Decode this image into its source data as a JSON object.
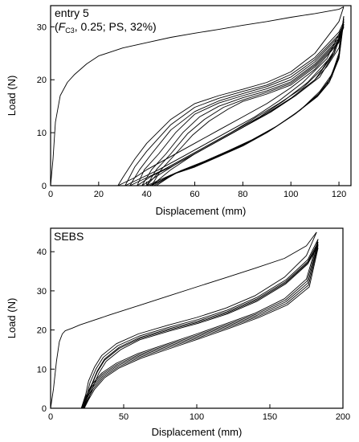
{
  "chart_data": [
    {
      "type": "line",
      "annotation": {
        "line1": "entry 5",
        "line2_open": "(",
        "line2_F": "F",
        "line2_sub": "C3",
        "line2_rest": ", 0.25; PS, 32%)"
      },
      "xlabel": "Displacement (mm)",
      "ylabel": "Load (N)",
      "xlim": [
        0,
        125
      ],
      "ylim": [
        0,
        34
      ],
      "xticks": [
        0,
        20,
        40,
        60,
        80,
        100,
        120
      ],
      "yticks": [
        0,
        10,
        20,
        30
      ],
      "grid": false,
      "line_color": "#000000",
      "series": [
        {
          "x": [
            0,
            1,
            2,
            4,
            7,
            10,
            15,
            20,
            30,
            40,
            50,
            60,
            70,
            80,
            90,
            100,
            110,
            120,
            122
          ],
          "y": [
            0,
            5,
            12,
            17,
            19.5,
            21,
            23,
            24.5,
            26,
            27,
            28,
            28.8,
            29.5,
            30.3,
            31,
            31.8,
            32.5,
            33.3,
            33.8
          ]
        },
        {
          "x": [
            122,
            120,
            110,
            100,
            90,
            80,
            70,
            60,
            50,
            40,
            35,
            30,
            28
          ],
          "y": [
            33.8,
            31,
            25,
            21.5,
            19.5,
            18.2,
            17,
            15.5,
            12.5,
            8,
            5,
            1.5,
            0
          ]
        },
        {
          "x": [
            28,
            35,
            40,
            50,
            60,
            70,
            80,
            90,
            100,
            110,
            120,
            122
          ],
          "y": [
            0,
            1.5,
            3,
            5.5,
            8,
            10.5,
            13,
            15.5,
            18.5,
            22,
            27,
            31
          ]
        },
        {
          "x": [
            122,
            120,
            110,
            100,
            90,
            80,
            70,
            60,
            50,
            40,
            35,
            31
          ],
          "y": [
            31,
            29,
            24.2,
            21,
            19,
            17.8,
            16.5,
            14.8,
            11.5,
            6.5,
            3.5,
            0
          ]
        },
        {
          "x": [
            31,
            38,
            45,
            55,
            65,
            75,
            85,
            95,
            105,
            115,
            122
          ],
          "y": [
            0,
            1.5,
            3,
            5.5,
            8,
            10.5,
            13,
            16,
            19.5,
            24,
            30.5
          ]
        },
        {
          "x": [
            122,
            120,
            110,
            100,
            90,
            80,
            70,
            60,
            50,
            42,
            37,
            33
          ],
          "y": [
            30.5,
            28.5,
            23.8,
            20.5,
            18.7,
            17.4,
            16,
            14,
            10.5,
            6,
            3,
            0
          ]
        },
        {
          "x": [
            33,
            40,
            47,
            57,
            67,
            77,
            87,
            97,
            107,
            117,
            122
          ],
          "y": [
            0,
            1.5,
            3,
            5.5,
            8,
            10.5,
            13,
            16,
            19.5,
            24.5,
            30.3
          ]
        },
        {
          "x": [
            122,
            120,
            110,
            100,
            90,
            80,
            70,
            60,
            52,
            45,
            39,
            36
          ],
          "y": [
            30.3,
            28.2,
            23.4,
            20,
            18.3,
            17,
            15.6,
            13.5,
            10,
            6,
            3,
            0
          ]
        },
        {
          "x": [
            36,
            42,
            50,
            60,
            70,
            80,
            90,
            100,
            110,
            118,
            122
          ],
          "y": [
            0,
            1.8,
            3.5,
            6,
            8.5,
            11,
            13.7,
            16.5,
            20,
            25,
            30
          ]
        },
        {
          "x": [
            122,
            120,
            110,
            100,
            90,
            80,
            70,
            62,
            55,
            48,
            42,
            38
          ],
          "y": [
            30,
            27.8,
            23,
            19.6,
            17.9,
            16.6,
            15,
            13,
            10,
            6,
            3,
            0
          ]
        },
        {
          "x": [
            38,
            45,
            52,
            62,
            72,
            82,
            92,
            102,
            112,
            118,
            122
          ],
          "y": [
            0,
            2,
            4,
            6.5,
            9,
            11.5,
            14,
            17,
            20.5,
            25,
            30
          ]
        },
        {
          "x": [
            122,
            120,
            110,
            100,
            90,
            80,
            72,
            64,
            57,
            50,
            44,
            40
          ],
          "y": [
            30,
            27.5,
            22.7,
            19.3,
            17.6,
            16.2,
            14.8,
            12.5,
            9.8,
            6,
            3,
            0
          ]
        },
        {
          "x": [
            40,
            45,
            55,
            65,
            75,
            85,
            95,
            105,
            113,
            118,
            122
          ],
          "y": [
            0,
            2.5,
            5,
            7.5,
            10,
            12.8,
            15.5,
            18.5,
            22,
            25.5,
            30.5
          ]
        },
        {
          "x": [
            122,
            120,
            110,
            100,
            90,
            80,
            74,
            66,
            59,
            52,
            46,
            42
          ],
          "y": [
            30.5,
            27.2,
            22.4,
            19,
            17.3,
            15.9,
            14.5,
            12.2,
            9.5,
            6,
            3,
            0
          ]
        },
        {
          "x": [
            42,
            50,
            60,
            70,
            80,
            90,
            100,
            110,
            115,
            120,
            122
          ],
          "y": [
            0,
            3,
            6,
            8.5,
            11,
            13.5,
            16.5,
            20,
            22.5,
            26,
            31
          ]
        },
        {
          "x": [
            40,
            45,
            50,
            60,
            70,
            80,
            90,
            100,
            110,
            115,
            120,
            122
          ],
          "y": [
            0,
            1,
            2,
            3.5,
            5.5,
            7.5,
            10,
            13,
            16.5,
            19,
            24,
            31
          ]
        },
        {
          "x": [
            41,
            46,
            51,
            61,
            71,
            81,
            91,
            101,
            111,
            116,
            120,
            122
          ],
          "y": [
            0,
            1,
            2.2,
            3.8,
            5.8,
            7.8,
            10.3,
            13.3,
            16.8,
            19.5,
            24,
            31.5
          ]
        },
        {
          "x": [
            42,
            47,
            52,
            62,
            72,
            82,
            92,
            102,
            111,
            116,
            120,
            122
          ],
          "y": [
            0,
            1.2,
            2.4,
            4,
            6,
            8.1,
            10.6,
            13.6,
            17,
            20,
            24.5,
            32
          ]
        },
        {
          "x": [
            43,
            48,
            53,
            63,
            73,
            83,
            93,
            103,
            112,
            117,
            120,
            122
          ],
          "y": [
            0,
            1.3,
            2.6,
            4.3,
            6.3,
            8.4,
            10.9,
            14,
            17.5,
            20.5,
            24.5,
            31.5
          ]
        },
        {
          "x": [
            44,
            49,
            54,
            64,
            74,
            84,
            94,
            104,
            112,
            117,
            120,
            122
          ],
          "y": [
            0,
            1.5,
            2.8,
            4.6,
            6.6,
            8.7,
            11.2,
            14.3,
            17.8,
            21,
            25,
            32
          ]
        }
      ]
    },
    {
      "type": "line",
      "annotation": {
        "line1": "SEBS"
      },
      "xlabel": "Displacement (mm)",
      "ylabel": "Load (N)",
      "xlim": [
        0,
        200
      ],
      "ylim": [
        0,
        46
      ],
      "xticks": [
        0,
        50,
        100,
        150,
        200
      ],
      "yticks": [
        0,
        10,
        20,
        30,
        40
      ],
      "grid": false,
      "line_color": "#000000",
      "series": [
        {
          "x": [
            0,
            2,
            4,
            6,
            8,
            10,
            15,
            20,
            40,
            60,
            80,
            100,
            120,
            140,
            160,
            175,
            182
          ],
          "y": [
            0,
            5,
            12,
            17,
            19,
            19.8,
            20.5,
            21.3,
            23.8,
            26.2,
            28.6,
            31,
            33.4,
            35.8,
            38.3,
            41.5,
            45
          ]
        },
        {
          "x": [
            182,
            175,
            160,
            140,
            120,
            100,
            80,
            60,
            45,
            35,
            30,
            26,
            24,
            21
          ],
          "y": [
            45,
            39,
            33.5,
            28.8,
            25.6,
            23.2,
            21.2,
            19,
            16.5,
            13.5,
            10.5,
            7,
            3.5,
            0
          ]
        },
        {
          "x": [
            183,
            176,
            161,
            141,
            121,
            101,
            81,
            61,
            46,
            36,
            31,
            27,
            24.5,
            21.5
          ],
          "y": [
            43.2,
            38,
            32.8,
            28.3,
            25.1,
            22.7,
            20.7,
            18.5,
            16,
            13,
            10,
            6.5,
            3,
            0
          ]
        },
        {
          "x": [
            183,
            176,
            161,
            141,
            121,
            101,
            81,
            61,
            47,
            37,
            32,
            28,
            25,
            22
          ],
          "y": [
            42.5,
            37.5,
            32.4,
            27.9,
            24.7,
            22.3,
            20.3,
            18.1,
            15.6,
            12.6,
            9.6,
            6,
            2.8,
            0
          ]
        },
        {
          "x": [
            183,
            176,
            161,
            141,
            121,
            101,
            81,
            61,
            47,
            37,
            32,
            28,
            25,
            22.5
          ],
          "y": [
            42,
            37.2,
            32.1,
            27.6,
            24.4,
            22,
            20,
            17.8,
            15.3,
            12.3,
            9.3,
            5.8,
            2.6,
            0
          ]
        },
        {
          "x": [
            183,
            176,
            161,
            141,
            121,
            101,
            81,
            61,
            48,
            38,
            33,
            29,
            26,
            23
          ],
          "y": [
            41.6,
            36.9,
            31.8,
            27.3,
            24.1,
            21.7,
            19.7,
            17.5,
            15,
            12,
            9,
            5.5,
            2.4,
            0
          ]
        },
        {
          "x": [
            21,
            24,
            28,
            35,
            45,
            60,
            80,
            100,
            120,
            140,
            160,
            175,
            183
          ],
          "y": [
            0,
            3,
            6,
            9,
            11.5,
            14,
            16.5,
            19,
            21.6,
            24.3,
            28,
            33,
            43.2
          ]
        },
        {
          "x": [
            21.5,
            24.5,
            28.5,
            35.5,
            45.5,
            60.5,
            80.5,
            100.5,
            120.5,
            140.5,
            160.5,
            175.5,
            183
          ],
          "y": [
            0,
            2.8,
            5.7,
            8.7,
            11.2,
            13.7,
            16.2,
            18.7,
            21.3,
            24,
            27.6,
            32.5,
            42.5
          ]
        },
        {
          "x": [
            22,
            25,
            29,
            36,
            46,
            61,
            81,
            101,
            121,
            141,
            161,
            176,
            183
          ],
          "y": [
            0,
            2.6,
            5.4,
            8.4,
            10.9,
            13.4,
            15.9,
            18.4,
            21,
            23.7,
            27.2,
            32,
            42
          ]
        },
        {
          "x": [
            22.5,
            25.5,
            29.5,
            36.5,
            46.5,
            61.5,
            81.5,
            101.5,
            121.5,
            141.5,
            161.5,
            176.5,
            183
          ],
          "y": [
            0,
            2.4,
            5.1,
            8.1,
            10.6,
            13.1,
            15.6,
            18.1,
            20.7,
            23.4,
            26.8,
            31.5,
            41.6
          ]
        },
        {
          "x": [
            23,
            26,
            30,
            37,
            47,
            62,
            82,
            102,
            122,
            142,
            162,
            177,
            183
          ],
          "y": [
            0,
            2.2,
            4.8,
            7.8,
            10.3,
            12.8,
            15.3,
            17.8,
            20.4,
            23.1,
            26.4,
            31,
            41
          ]
        }
      ]
    }
  ]
}
